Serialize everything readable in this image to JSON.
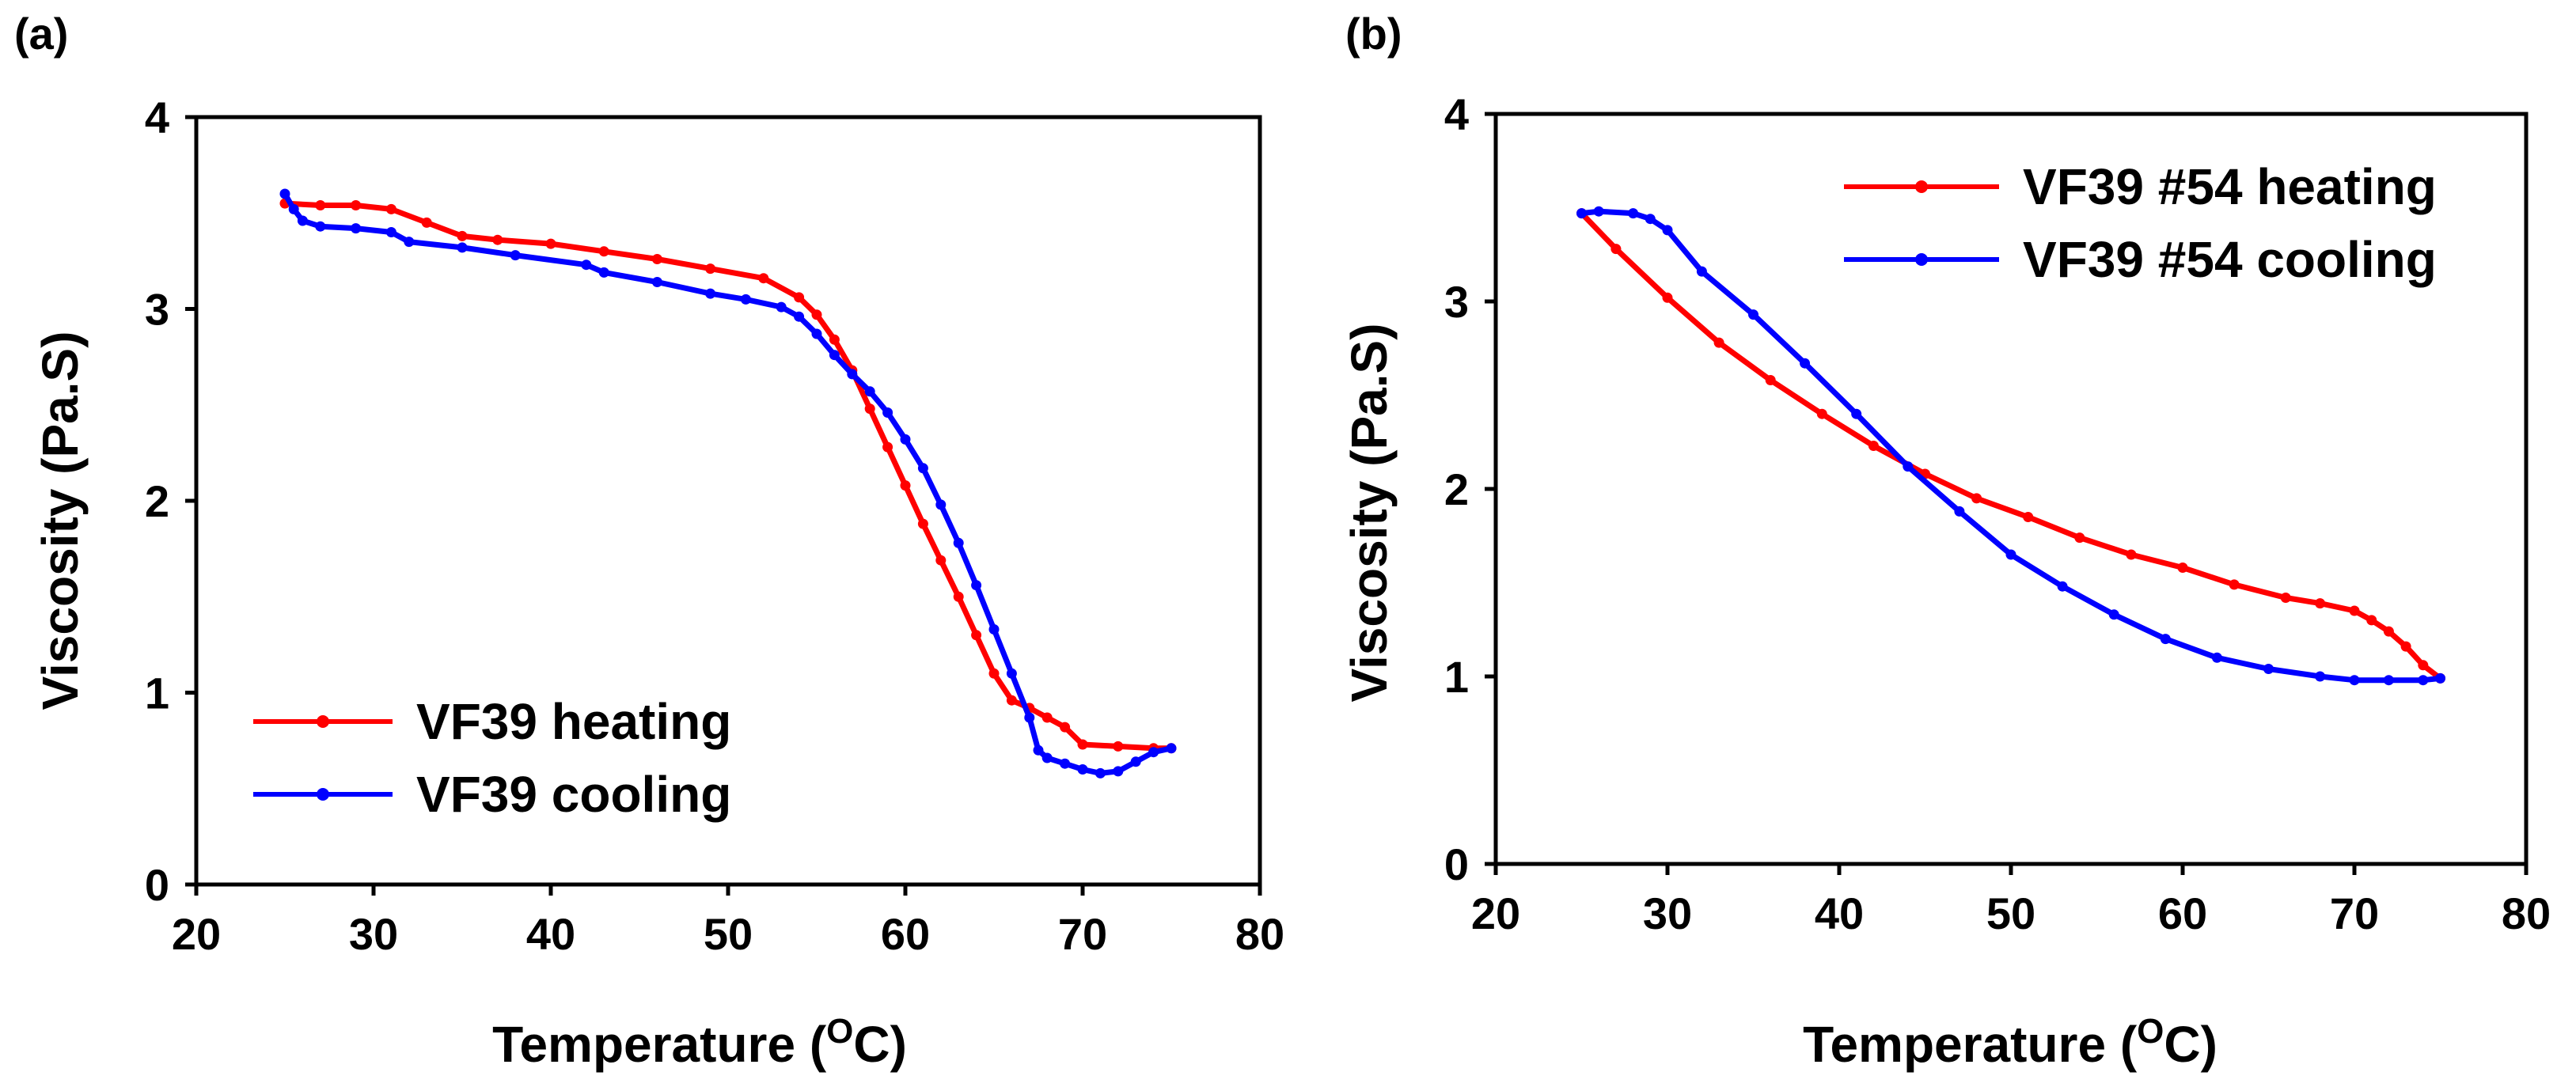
{
  "chart_data": [
    {
      "panel_label": "(a)",
      "type": "line",
      "xlabel": "Temperature (",
      "xlabel_sup": "O",
      "xlabel_end": "C)",
      "ylabel": "Viscosity (Pa.S)",
      "xlim": [
        20,
        80
      ],
      "ylim": [
        0,
        4
      ],
      "xticks": [
        "20",
        "30",
        "40",
        "50",
        "60",
        "70",
        "80"
      ],
      "yticks": [
        "0",
        "1",
        "2",
        "3",
        "4"
      ],
      "legend_position": "bottom-left",
      "series": [
        {
          "name": "VF39 heating",
          "color": "#ff0000",
          "points": [
            [
              25,
              3.55
            ],
            [
              27,
              3.54
            ],
            [
              29,
              3.54
            ],
            [
              31,
              3.52
            ],
            [
              33,
              3.45
            ],
            [
              35,
              3.38
            ],
            [
              37,
              3.36
            ],
            [
              40,
              3.34
            ],
            [
              43,
              3.3
            ],
            [
              46,
              3.26
            ],
            [
              49,
              3.21
            ],
            [
              52,
              3.16
            ],
            [
              54,
              3.06
            ],
            [
              55,
              2.97
            ],
            [
              56,
              2.84
            ],
            [
              57,
              2.68
            ],
            [
              58,
              2.48
            ],
            [
              59,
              2.28
            ],
            [
              60,
              2.08
            ],
            [
              61,
              1.88
            ],
            [
              62,
              1.69
            ],
            [
              63,
              1.5
            ],
            [
              64,
              1.3
            ],
            [
              65,
              1.1
            ],
            [
              66,
              0.96
            ],
            [
              67,
              0.92
            ],
            [
              68,
              0.87
            ],
            [
              69,
              0.82
            ],
            [
              70,
              0.73
            ],
            [
              72,
              0.72
            ],
            [
              74,
              0.71
            ],
            [
              75,
              0.71
            ]
          ]
        },
        {
          "name": "VF39 cooling",
          "color": "#0000ff",
          "points": [
            [
              25,
              3.6
            ],
            [
              25.5,
              3.52
            ],
            [
              26,
              3.46
            ],
            [
              27,
              3.43
            ],
            [
              29,
              3.42
            ],
            [
              31,
              3.4
            ],
            [
              32,
              3.35
            ],
            [
              35,
              3.32
            ],
            [
              38,
              3.28
            ],
            [
              42,
              3.23
            ],
            [
              43,
              3.19
            ],
            [
              46,
              3.14
            ],
            [
              49,
              3.08
            ],
            [
              51,
              3.05
            ],
            [
              53,
              3.01
            ],
            [
              54,
              2.96
            ],
            [
              55,
              2.87
            ],
            [
              56,
              2.76
            ],
            [
              57,
              2.66
            ],
            [
              58,
              2.57
            ],
            [
              59,
              2.46
            ],
            [
              60,
              2.32
            ],
            [
              61,
              2.17
            ],
            [
              62,
              1.98
            ],
            [
              63,
              1.78
            ],
            [
              64,
              1.56
            ],
            [
              65,
              1.33
            ],
            [
              66,
              1.1
            ],
            [
              67,
              0.87
            ],
            [
              67.5,
              0.7
            ],
            [
              68,
              0.66
            ],
            [
              69,
              0.63
            ],
            [
              70,
              0.6
            ],
            [
              71,
              0.58
            ],
            [
              72,
              0.59
            ],
            [
              73,
              0.64
            ],
            [
              74,
              0.69
            ],
            [
              75,
              0.71
            ]
          ]
        }
      ]
    },
    {
      "panel_label": "(b)",
      "type": "line",
      "xlabel": "Temperature (",
      "xlabel_sup": "O",
      "xlabel_end": "C)",
      "ylabel": "Viscosity (Pa.S)",
      "xlim": [
        20,
        80
      ],
      "ylim": [
        0,
        4
      ],
      "xticks": [
        "20",
        "30",
        "40",
        "50",
        "60",
        "70",
        "80"
      ],
      "yticks": [
        "0",
        "1",
        "2",
        "3",
        "4"
      ],
      "legend_position": "top-right",
      "series": [
        {
          "name": "VF39 #54 heating",
          "color": "#ff0000",
          "points": [
            [
              25,
              3.47
            ],
            [
              27,
              3.28
            ],
            [
              30,
              3.02
            ],
            [
              33,
              2.78
            ],
            [
              36,
              2.58
            ],
            [
              39,
              2.4
            ],
            [
              42,
              2.23
            ],
            [
              45,
              2.08
            ],
            [
              48,
              1.95
            ],
            [
              51,
              1.85
            ],
            [
              54,
              1.74
            ],
            [
              57,
              1.65
            ],
            [
              60,
              1.58
            ],
            [
              63,
              1.49
            ],
            [
              66,
              1.42
            ],
            [
              68,
              1.39
            ],
            [
              70,
              1.35
            ],
            [
              71,
              1.3
            ],
            [
              72,
              1.24
            ],
            [
              73,
              1.16
            ],
            [
              74,
              1.06
            ],
            [
              75,
              0.99
            ]
          ]
        },
        {
          "name": "VF39 #54 cooling",
          "color": "#0000ff",
          "points": [
            [
              25,
              3.47
            ],
            [
              26,
              3.48
            ],
            [
              28,
              3.47
            ],
            [
              29,
              3.44
            ],
            [
              30,
              3.38
            ],
            [
              32,
              3.16
            ],
            [
              35,
              2.93
            ],
            [
              38,
              2.67
            ],
            [
              41,
              2.4
            ],
            [
              44,
              2.12
            ],
            [
              47,
              1.88
            ],
            [
              50,
              1.65
            ],
            [
              53,
              1.48
            ],
            [
              56,
              1.33
            ],
            [
              59,
              1.2
            ],
            [
              62,
              1.1
            ],
            [
              65,
              1.04
            ],
            [
              68,
              1.0
            ],
            [
              70,
              0.98
            ],
            [
              72,
              0.98
            ],
            [
              74,
              0.98
            ],
            [
              75,
              0.99
            ]
          ]
        }
      ]
    }
  ]
}
